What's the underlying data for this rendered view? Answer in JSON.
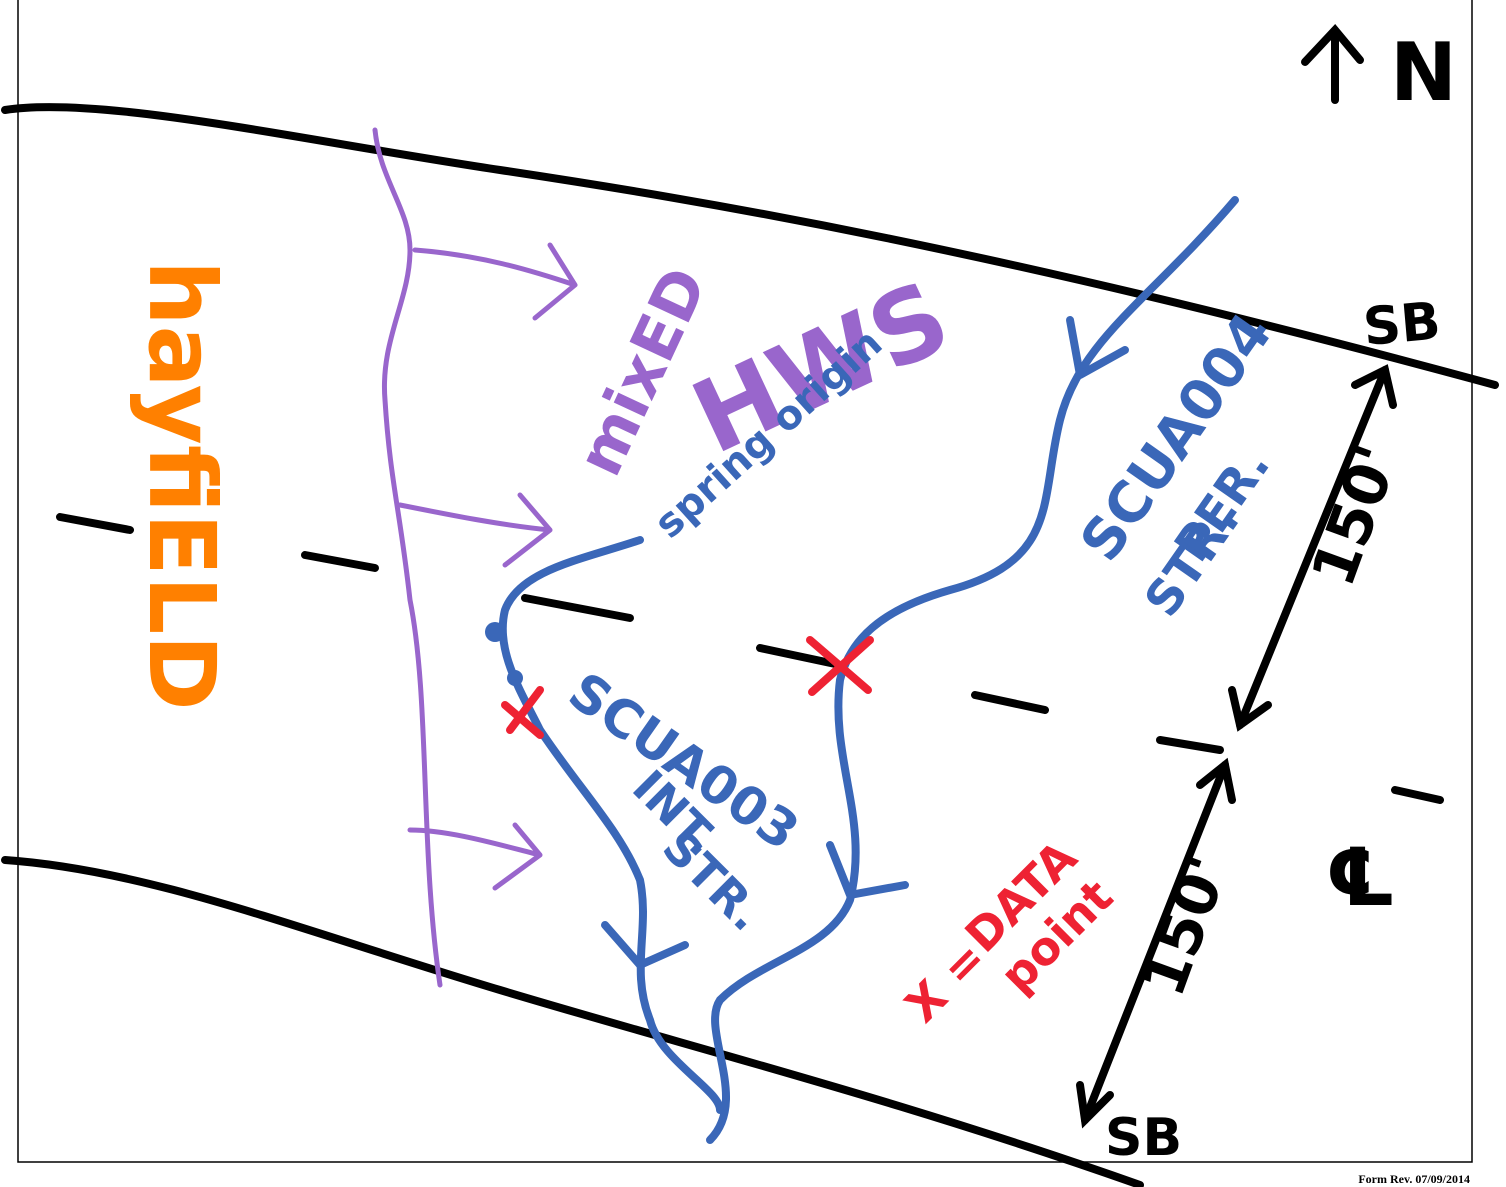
{
  "north": "N",
  "road_labels": {
    "top": "SB",
    "bottom": "SB",
    "centerline": "℄"
  },
  "dimensions": [
    "150'",
    "150'"
  ],
  "area_labels": {
    "hayfield": "hayfiELD",
    "mixed": "mixED",
    "hws": "HWS",
    "spring_origin": "spring origin"
  },
  "streams": [
    {
      "id": "SCUA004",
      "type": "PER.",
      "abbr": "STR."
    },
    {
      "id": "SCUA003",
      "type": "INT.",
      "abbr": "STR."
    }
  ],
  "legend": {
    "symbol": "X =",
    "meaning_1": "DATA",
    "meaning_2": "point"
  },
  "form_rev": "Form Rev. 07/09/2014"
}
